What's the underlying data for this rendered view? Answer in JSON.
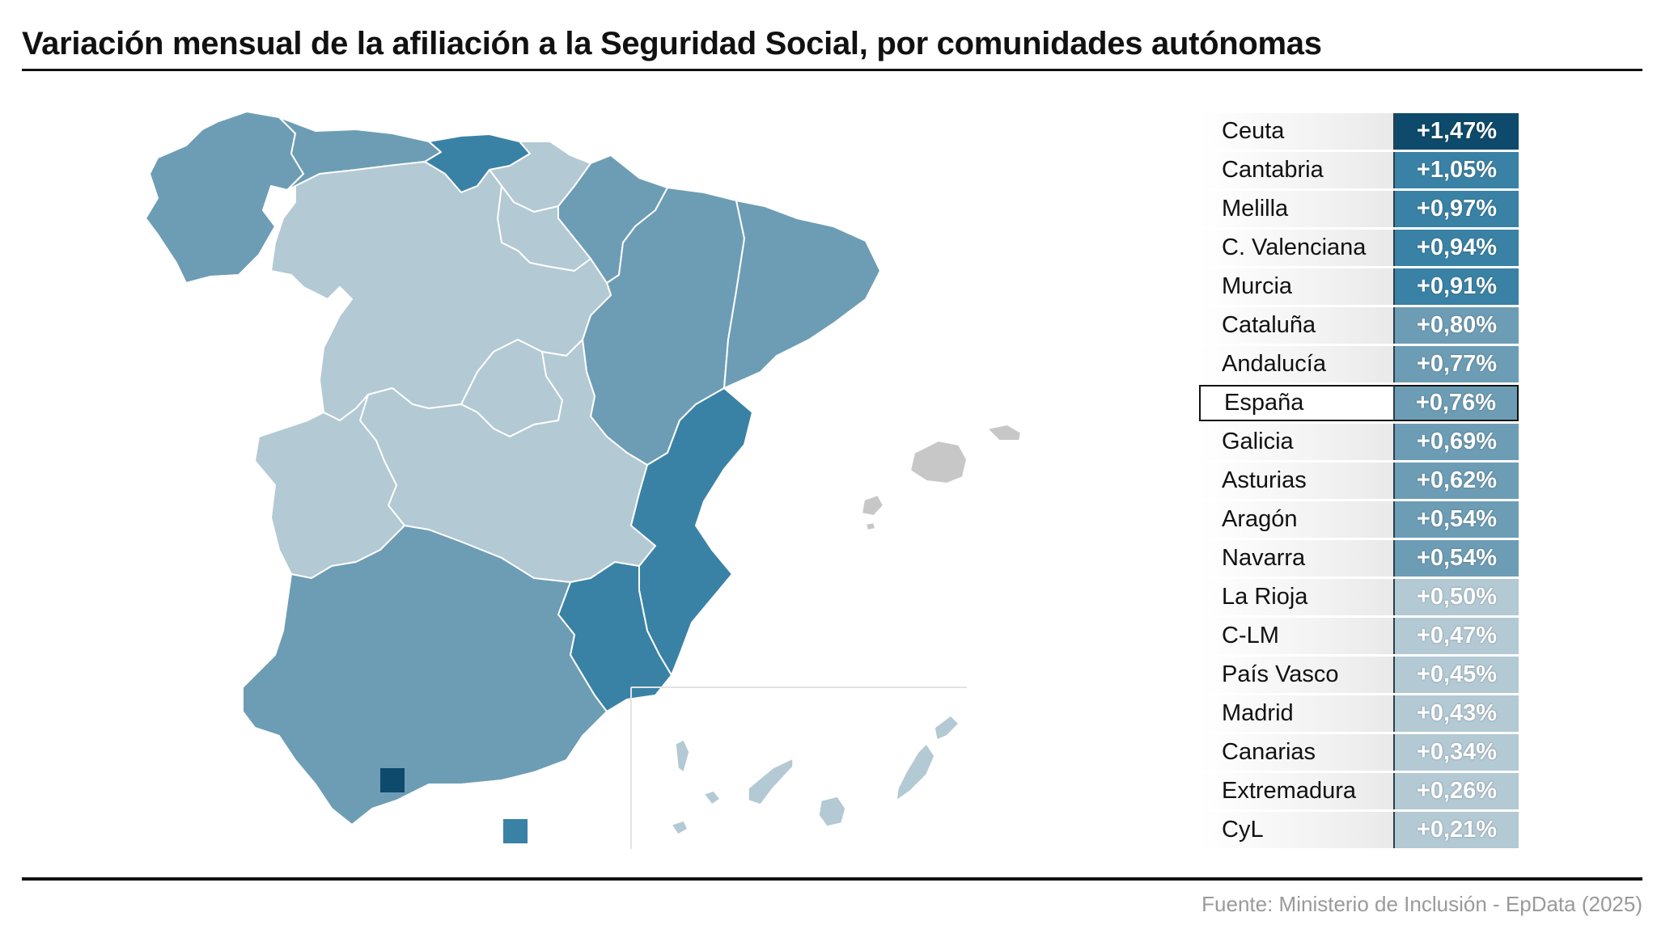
{
  "title": "Variación mensual de la afiliación a la Seguridad Social, por comunidades autónomas",
  "source": "Fuente: Ministerio de Inclusión - EpData (2025)",
  "colors": {
    "darkest": "#0e4a6b",
    "dark": "#3a82a5",
    "medium": "#6d9db5",
    "light": "#b3c9d4",
    "balearic": "#c7c7c7",
    "border": "#ffffff"
  },
  "map": {
    "regions": [
      {
        "name": "Galicia",
        "value": "+0,69%",
        "tone": "medium"
      },
      {
        "name": "Asturias",
        "value": "+0,62%",
        "tone": "medium"
      },
      {
        "name": "Cantabria",
        "value": "+1,05%",
        "tone": "dark"
      },
      {
        "name": "País Vasco",
        "value": "+0,45%",
        "tone": "light"
      },
      {
        "name": "Navarra",
        "value": "+0,54%",
        "tone": "medium"
      },
      {
        "name": "La Rioja",
        "value": "+0,50%",
        "tone": "light"
      },
      {
        "name": "Aragón",
        "value": "+0,54%",
        "tone": "medium"
      },
      {
        "name": "Cataluña",
        "value": "+0,80%",
        "tone": "medium"
      },
      {
        "name": "CyL",
        "value": "+0,21%",
        "tone": "light"
      },
      {
        "name": "Madrid",
        "value": "+0,43%",
        "tone": "light"
      },
      {
        "name": "C-LM",
        "value": "+0,47%",
        "tone": "light"
      },
      {
        "name": "Extremadura",
        "value": "+0,26%",
        "tone": "light"
      },
      {
        "name": "C. Valenciana",
        "value": "+0,94%",
        "tone": "dark"
      },
      {
        "name": "Murcia",
        "value": "+0,91%",
        "tone": "dark"
      },
      {
        "name": "Andalucía",
        "value": "+0,77%",
        "tone": "medium"
      },
      {
        "name": "Baleares",
        "value": "",
        "tone": "balearic"
      },
      {
        "name": "Canarias",
        "value": "+0,34%",
        "tone": "light"
      },
      {
        "name": "Ceuta",
        "value": "+1,47%",
        "tone": "darkest"
      },
      {
        "name": "Melilla",
        "value": "+0,97%",
        "tone": "dark"
      }
    ]
  },
  "ranking": [
    {
      "label": "Ceuta",
      "value": "+1,47%",
      "color": "#0e4a6b",
      "highlight": false
    },
    {
      "label": "Cantabria",
      "value": "+1,05%",
      "color": "#3a82a5",
      "highlight": false
    },
    {
      "label": "Melilla",
      "value": "+0,97%",
      "color": "#3a82a5",
      "highlight": false
    },
    {
      "label": "C. Valenciana",
      "value": "+0,94%",
      "color": "#3a82a5",
      "highlight": false
    },
    {
      "label": "Murcia",
      "value": "+0,91%",
      "color": "#3a82a5",
      "highlight": false
    },
    {
      "label": "Cataluña",
      "value": "+0,80%",
      "color": "#6d9db5",
      "highlight": false
    },
    {
      "label": "Andalucía",
      "value": "+0,77%",
      "color": "#6d9db5",
      "highlight": false
    },
    {
      "label": "España",
      "value": "+0,76%",
      "color": "#6d9db5",
      "highlight": true
    },
    {
      "label": "Galicia",
      "value": "+0,69%",
      "color": "#6d9db5",
      "highlight": false
    },
    {
      "label": "Asturias",
      "value": "+0,62%",
      "color": "#6d9db5",
      "highlight": false
    },
    {
      "label": "Aragón",
      "value": "+0,54%",
      "color": "#6d9db5",
      "highlight": false
    },
    {
      "label": "Navarra",
      "value": "+0,54%",
      "color": "#6d9db5",
      "highlight": false
    },
    {
      "label": "La Rioja",
      "value": "+0,50%",
      "color": "#b3c9d4",
      "highlight": false
    },
    {
      "label": "C-LM",
      "value": "+0,47%",
      "color": "#b3c9d4",
      "highlight": false
    },
    {
      "label": "País Vasco",
      "value": "+0,45%",
      "color": "#b3c9d4",
      "highlight": false
    },
    {
      "label": "Madrid",
      "value": "+0,43%",
      "color": "#b3c9d4",
      "highlight": false
    },
    {
      "label": "Canarias",
      "value": "+0,34%",
      "color": "#b3c9d4",
      "highlight": false
    },
    {
      "label": "Extremadura",
      "value": "+0,26%",
      "color": "#b3c9d4",
      "highlight": false
    },
    {
      "label": "CyL",
      "value": "+0,21%",
      "color": "#b3c9d4",
      "highlight": false
    }
  ]
}
